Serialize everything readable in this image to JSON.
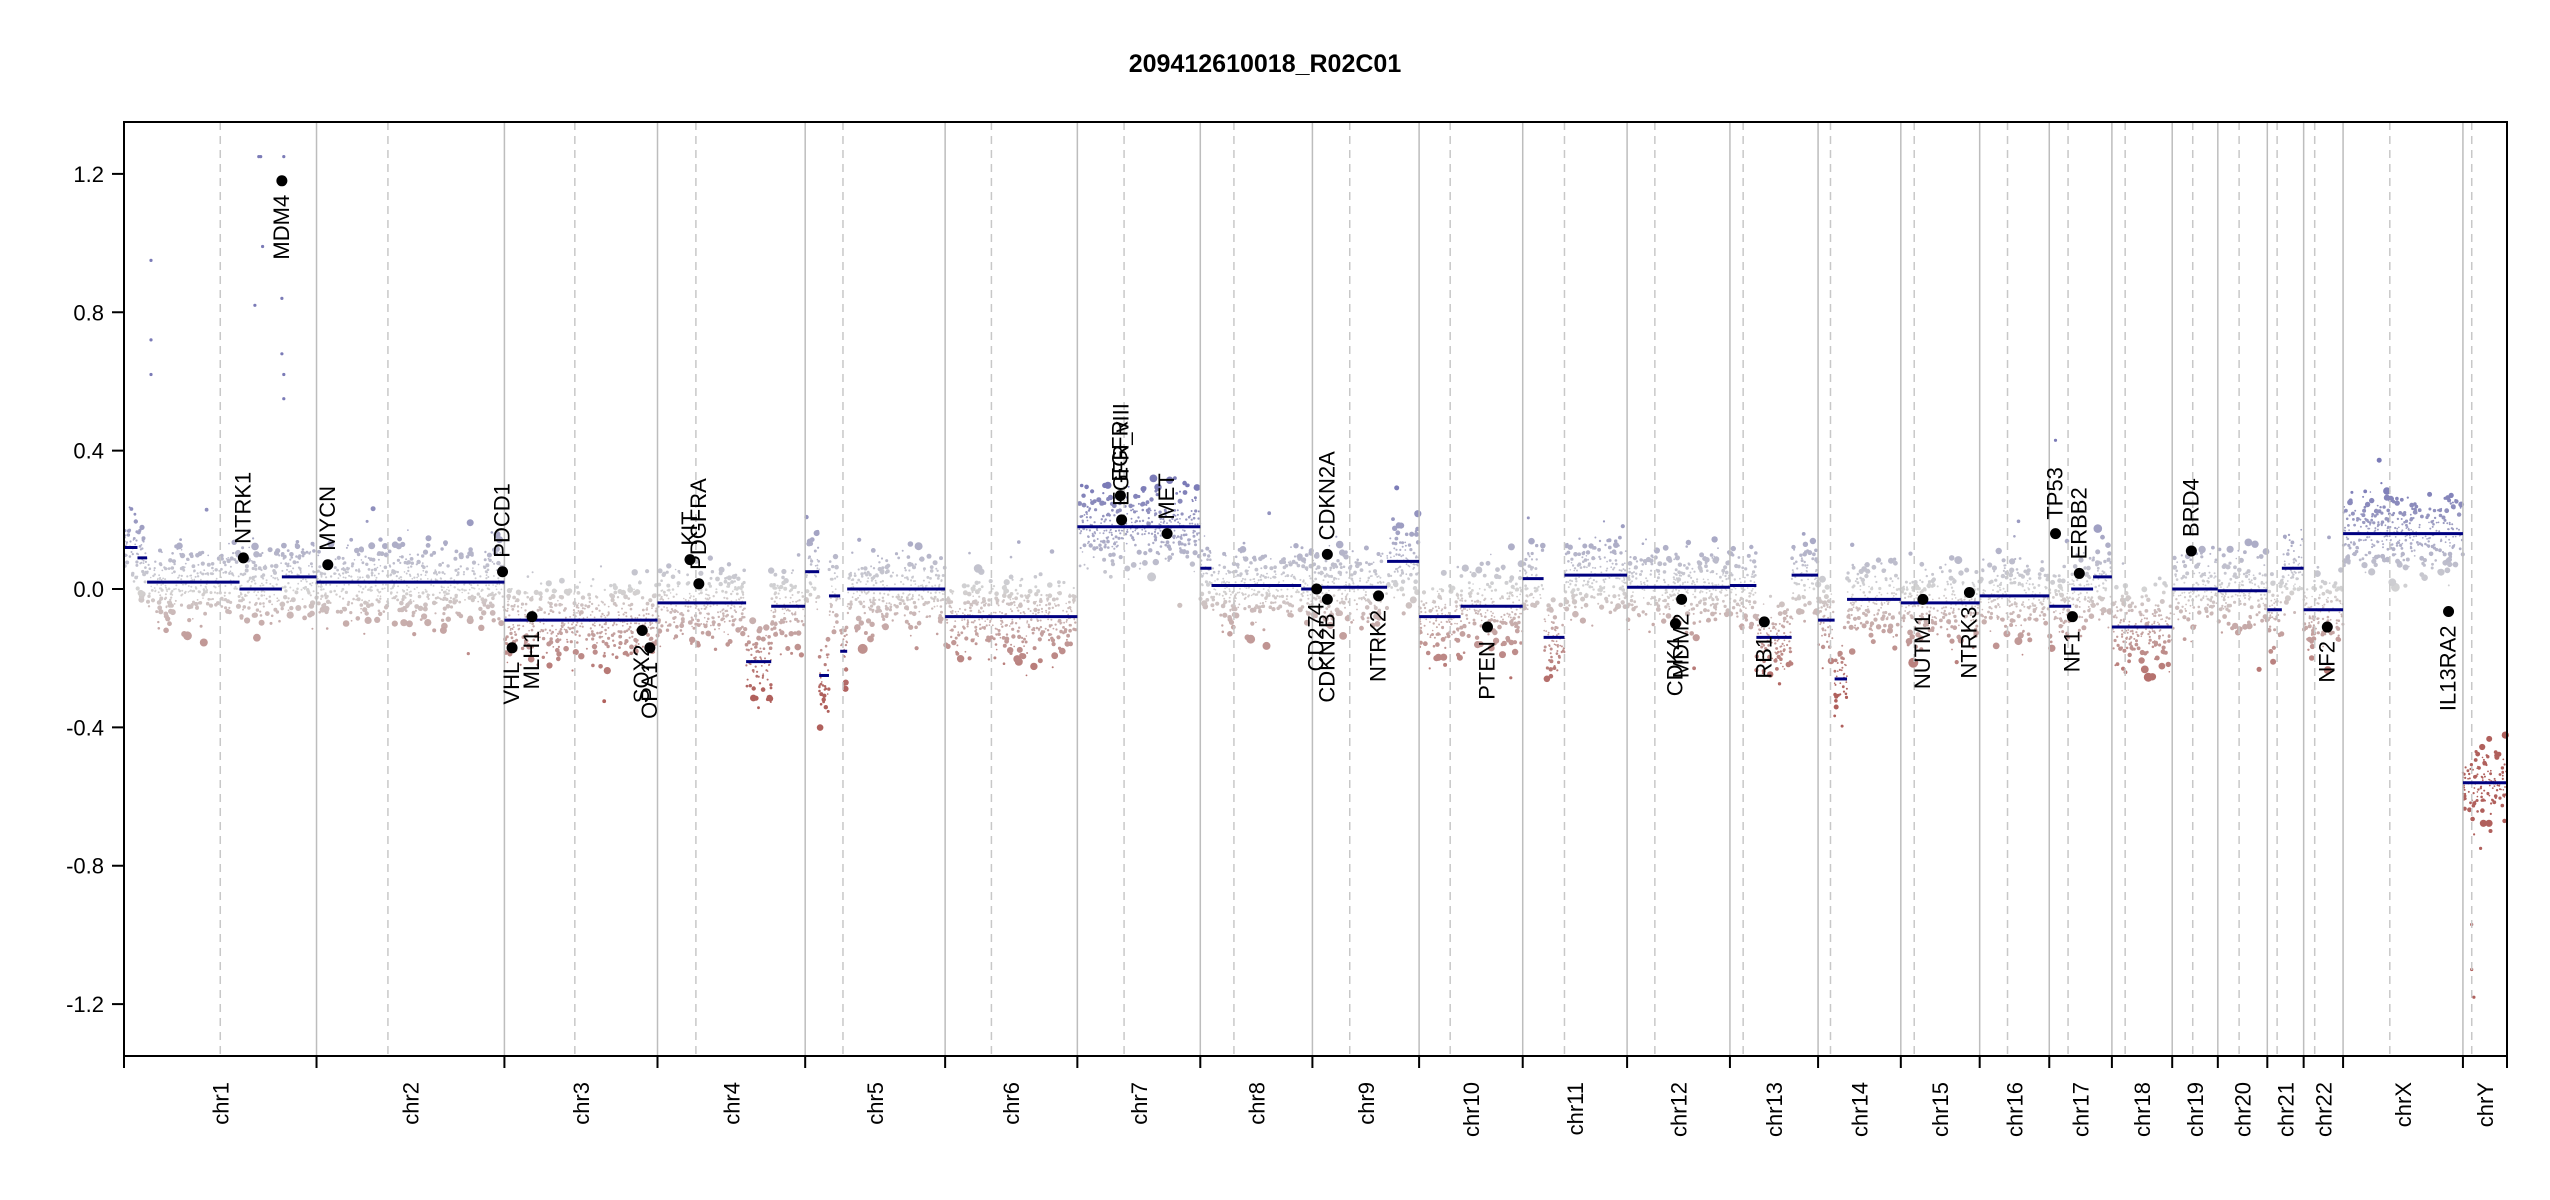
{
  "chart_data": {
    "type": "scatter",
    "title": "209412610018_R02C01",
    "xlabel": "",
    "ylabel": "",
    "ylim": [
      -1.35,
      1.35
    ],
    "yticks": [
      "-1.2",
      "-0.8",
      "-0.4",
      "0.0",
      "0.4",
      "0.8",
      "1.2"
    ],
    "grid": false,
    "colors": {
      "gain": "#7b7bb7",
      "neutral": "#d3d3d3",
      "loss": "#b0605c",
      "segment": "#000080",
      "gene_point": "#000000",
      "chromosome_boundary": "#bdbdbd",
      "centromere": "#c8c8c8"
    },
    "chromosomes": [
      {
        "name": "chr1",
        "length": 249,
        "cen": 0.5
      },
      {
        "name": "chr2",
        "length": 243,
        "cen": 0.38
      },
      {
        "name": "chr3",
        "length": 198,
        "cen": 0.46
      },
      {
        "name": "chr4",
        "length": 191,
        "cen": 0.26
      },
      {
        "name": "chr5",
        "length": 181,
        "cen": 0.27
      },
      {
        "name": "chr6",
        "length": 171,
        "cen": 0.35
      },
      {
        "name": "chr7",
        "length": 159,
        "cen": 0.38
      },
      {
        "name": "chr8",
        "length": 145,
        "cen": 0.3
      },
      {
        "name": "chr9",
        "length": 138,
        "cen": 0.35
      },
      {
        "name": "chr10",
        "length": 134,
        "cen": 0.3
      },
      {
        "name": "chr11",
        "length": 135,
        "cen": 0.4
      },
      {
        "name": "chr12",
        "length": 133,
        "cen": 0.27
      },
      {
        "name": "chr13",
        "length": 114,
        "cen": 0.15
      },
      {
        "name": "chr14",
        "length": 107,
        "cen": 0.15
      },
      {
        "name": "chr15",
        "length": 102,
        "cen": 0.17
      },
      {
        "name": "chr16",
        "length": 90,
        "cen": 0.4
      },
      {
        "name": "chr17",
        "length": 81,
        "cen": 0.3
      },
      {
        "name": "chr18",
        "length": 78,
        "cen": 0.22
      },
      {
        "name": "chr19",
        "length": 59,
        "cen": 0.45
      },
      {
        "name": "chr20",
        "length": 64,
        "cen": 0.43
      },
      {
        "name": "chr21",
        "length": 47,
        "cen": 0.27
      },
      {
        "name": "chr22",
        "length": 51,
        "cen": 0.28
      },
      {
        "name": "chrX",
        "length": 155,
        "cen": 0.39
      },
      {
        "name": "chrY",
        "length": 57,
        "cen": 0.2
      }
    ],
    "segments": [
      {
        "chr": "chr1",
        "from": 0.0,
        "to": 0.07,
        "value": 0.12
      },
      {
        "chr": "chr1",
        "from": 0.07,
        "to": 0.12,
        "value": 0.09
      },
      {
        "chr": "chr1",
        "from": 0.12,
        "to": 0.6,
        "value": 0.02
      },
      {
        "chr": "chr1",
        "from": 0.6,
        "to": 0.82,
        "value": 0.0
      },
      {
        "chr": "chr1",
        "from": 0.82,
        "to": 1.0,
        "value": 0.035
      },
      {
        "chr": "chr2",
        "from": 0.0,
        "to": 1.0,
        "value": 0.02
      },
      {
        "chr": "chr3",
        "from": 0.0,
        "to": 1.0,
        "value": -0.09
      },
      {
        "chr": "chr4",
        "from": 0.0,
        "to": 0.6,
        "value": -0.04
      },
      {
        "chr": "chr4",
        "from": 0.6,
        "to": 0.77,
        "value": -0.21
      },
      {
        "chr": "chr4",
        "from": 0.77,
        "to": 1.0,
        "value": -0.05
      },
      {
        "chr": "chr5",
        "from": 0.0,
        "to": 0.1,
        "value": 0.05
      },
      {
        "chr": "chr5",
        "from": 0.1,
        "to": 0.17,
        "value": -0.25
      },
      {
        "chr": "chr5",
        "from": 0.17,
        "to": 0.25,
        "value": -0.02
      },
      {
        "chr": "chr5",
        "from": 0.25,
        "to": 0.3,
        "value": -0.18
      },
      {
        "chr": "chr5",
        "from": 0.3,
        "to": 1.0,
        "value": 0.0
      },
      {
        "chr": "chr6",
        "from": 0.0,
        "to": 1.0,
        "value": -0.08
      },
      {
        "chr": "chr7",
        "from": 0.0,
        "to": 1.0,
        "value": 0.18
      },
      {
        "chr": "chr8",
        "from": 0.0,
        "to": 0.1,
        "value": 0.06
      },
      {
        "chr": "chr8",
        "from": 0.1,
        "to": 0.9,
        "value": 0.01
      },
      {
        "chr": "chr8",
        "from": 0.9,
        "to": 1.0,
        "value": 0.0
      },
      {
        "chr": "chr9",
        "from": 0.0,
        "to": 0.7,
        "value": 0.005
      },
      {
        "chr": "chr9",
        "from": 0.7,
        "to": 1.0,
        "value": 0.08
      },
      {
        "chr": "chr10",
        "from": 0.0,
        "to": 0.4,
        "value": -0.08
      },
      {
        "chr": "chr10",
        "from": 0.4,
        "to": 1.0,
        "value": -0.05
      },
      {
        "chr": "chr11",
        "from": 0.0,
        "to": 0.2,
        "value": 0.03
      },
      {
        "chr": "chr11",
        "from": 0.2,
        "to": 0.4,
        "value": -0.14
      },
      {
        "chr": "chr11",
        "from": 0.4,
        "to": 1.0,
        "value": 0.04
      },
      {
        "chr": "chr12",
        "from": 0.0,
        "to": 1.0,
        "value": 0.005
      },
      {
        "chr": "chr13",
        "from": 0.0,
        "to": 0.3,
        "value": 0.01
      },
      {
        "chr": "chr13",
        "from": 0.3,
        "to": 0.7,
        "value": -0.14
      },
      {
        "chr": "chr13",
        "from": 0.7,
        "to": 1.0,
        "value": 0.04
      },
      {
        "chr": "chr14",
        "from": 0.0,
        "to": 0.2,
        "value": -0.09
      },
      {
        "chr": "chr14",
        "from": 0.2,
        "to": 0.35,
        "value": -0.26
      },
      {
        "chr": "chr14",
        "from": 0.35,
        "to": 1.0,
        "value": -0.03
      },
      {
        "chr": "chr15",
        "from": 0.0,
        "to": 1.0,
        "value": -0.04
      },
      {
        "chr": "chr16",
        "from": 0.0,
        "to": 1.0,
        "value": -0.02
      },
      {
        "chr": "chr17",
        "from": 0.0,
        "to": 0.35,
        "value": -0.05
      },
      {
        "chr": "chr17",
        "from": 0.35,
        "to": 0.7,
        "value": 0.0
      },
      {
        "chr": "chr17",
        "from": 0.7,
        "to": 1.0,
        "value": 0.035
      },
      {
        "chr": "chr18",
        "from": 0.0,
        "to": 1.0,
        "value": -0.11
      },
      {
        "chr": "chr19",
        "from": 0.0,
        "to": 1.0,
        "value": 0.0
      },
      {
        "chr": "chr20",
        "from": 0.0,
        "to": 1.0,
        "value": -0.005
      },
      {
        "chr": "chr21",
        "from": 0.0,
        "to": 0.4,
        "value": -0.06
      },
      {
        "chr": "chr21",
        "from": 0.4,
        "to": 1.0,
        "value": 0.06
      },
      {
        "chr": "chr22",
        "from": 0.0,
        "to": 1.0,
        "value": -0.06
      },
      {
        "chr": "chrX",
        "from": 0.0,
        "to": 1.0,
        "value": 0.16
      },
      {
        "chr": "chrY",
        "from": 0.0,
        "to": 1.0,
        "value": -0.56
      }
    ],
    "genes": [
      {
        "name": "NTRK1",
        "chr": "chr1",
        "pos": 0.62,
        "value": 0.09,
        "label_side": "above"
      },
      {
        "name": "MDM4",
        "chr": "chr1",
        "pos": 0.82,
        "value": 1.18,
        "label_side": "below"
      },
      {
        "name": "MYCN",
        "chr": "chr2",
        "pos": 0.06,
        "value": 0.07,
        "label_side": "above"
      },
      {
        "name": "PDCD1",
        "chr": "chr2",
        "pos": 0.99,
        "value": 0.05,
        "label_side": "above"
      },
      {
        "name": "VHL",
        "chr": "chr3",
        "pos": 0.05,
        "value": -0.17,
        "label_side": "below"
      },
      {
        "name": "MLH1",
        "chr": "chr3",
        "pos": 0.18,
        "value": -0.08,
        "label_side": "below"
      },
      {
        "name": "SOX2",
        "chr": "chr3",
        "pos": 0.9,
        "value": -0.12,
        "label_side": "below"
      },
      {
        "name": "OPA1",
        "chr": "chr3",
        "pos": 0.95,
        "value": -0.17,
        "label_side": "below"
      },
      {
        "name": "KIT",
        "chr": "chr4",
        "pos": 0.22,
        "value": 0.085,
        "label_side": "above"
      },
      {
        "name": "PDGFRA",
        "chr": "chr4",
        "pos": 0.28,
        "value": 0.015,
        "label_side": "above"
      },
      {
        "name": "EGFR",
        "chr": "chr7",
        "pos": 0.35,
        "value": 0.27,
        "label_side": "above"
      },
      {
        "name": "EGFR_vIII",
        "chr": "chr7",
        "pos": 0.36,
        "value": 0.2,
        "label_side": "above"
      },
      {
        "name": "MET",
        "chr": "chr7",
        "pos": 0.73,
        "value": 0.16,
        "label_side": "above"
      },
      {
        "name": "CD274",
        "chr": "chr9",
        "pos": 0.04,
        "value": 0.0,
        "label_side": "below"
      },
      {
        "name": "CDKN2B",
        "chr": "chr9",
        "pos": 0.14,
        "value": -0.03,
        "label_side": "below"
      },
      {
        "name": "CDKN2A",
        "chr": "chr9",
        "pos": 0.14,
        "value": 0.1,
        "label_side": "above"
      },
      {
        "name": "NTRK2",
        "chr": "chr9",
        "pos": 0.62,
        "value": -0.02,
        "label_side": "below"
      },
      {
        "name": "PTEN",
        "chr": "chr10",
        "pos": 0.66,
        "value": -0.11,
        "label_side": "below"
      },
      {
        "name": "CDK4",
        "chr": "chr12",
        "pos": 0.47,
        "value": -0.1,
        "label_side": "below"
      },
      {
        "name": "MDM2",
        "chr": "chr12",
        "pos": 0.53,
        "value": -0.03,
        "label_side": "below"
      },
      {
        "name": "RB1",
        "chr": "chr13",
        "pos": 0.39,
        "value": -0.095,
        "label_side": "below"
      },
      {
        "name": "NUTM1",
        "chr": "chr15",
        "pos": 0.28,
        "value": -0.03,
        "label_side": "below"
      },
      {
        "name": "NTRK3",
        "chr": "chr15",
        "pos": 0.87,
        "value": -0.01,
        "label_side": "below"
      },
      {
        "name": "TP53",
        "chr": "chr17",
        "pos": 0.1,
        "value": 0.16,
        "label_side": "above"
      },
      {
        "name": "ERBB2",
        "chr": "chr17",
        "pos": 0.48,
        "value": 0.045,
        "label_side": "above"
      },
      {
        "name": "NF1",
        "chr": "chr17",
        "pos": 0.37,
        "value": -0.08,
        "label_side": "below"
      },
      {
        "name": "BRD4",
        "chr": "chr19",
        "pos": 0.42,
        "value": 0.11,
        "label_side": "above"
      },
      {
        "name": "NF2",
        "chr": "chr22",
        "pos": 0.6,
        "value": -0.11,
        "label_side": "below"
      },
      {
        "name": "IL13RA2",
        "chrX": true,
        "chr": "chrX",
        "pos": 0.88,
        "value": -0.065,
        "label_side": "below"
      }
    ],
    "outliers": [
      {
        "chr": "chr1",
        "pos": 0.7,
        "value": 1.25
      },
      {
        "chr": "chr1",
        "pos": 0.71,
        "value": 1.25
      },
      {
        "chr": "chr1",
        "pos": 0.83,
        "value": 1.25
      },
      {
        "chr": "chr1",
        "pos": 0.82,
        "value": 0.84
      },
      {
        "chr": "chr1",
        "pos": 0.82,
        "value": 0.68
      },
      {
        "chr": "chr1",
        "pos": 0.83,
        "value": 0.62
      },
      {
        "chr": "chr1",
        "pos": 0.83,
        "value": 0.55
      },
      {
        "chr": "chr1",
        "pos": 0.14,
        "value": 0.95
      },
      {
        "chr": "chr1",
        "pos": 0.14,
        "value": 0.72
      },
      {
        "chr": "chr1",
        "pos": 0.14,
        "value": 0.62
      },
      {
        "chr": "chr1",
        "pos": 0.72,
        "value": 0.99
      },
      {
        "chr": "chr1",
        "pos": 0.68,
        "value": 0.82
      },
      {
        "chr": "chrY",
        "pos": 0.2,
        "value": -0.97
      },
      {
        "chr": "chrY",
        "pos": 0.2,
        "value": -1.1
      },
      {
        "chr": "chrY",
        "pos": 0.25,
        "value": -1.18
      },
      {
        "chr": "chrY",
        "pos": 0.4,
        "value": -0.75
      },
      {
        "chr": "chrY",
        "pos": 0.3,
        "value": -0.47
      },
      {
        "chr": "chr17",
        "pos": 0.1,
        "value": 0.43
      }
    ]
  }
}
